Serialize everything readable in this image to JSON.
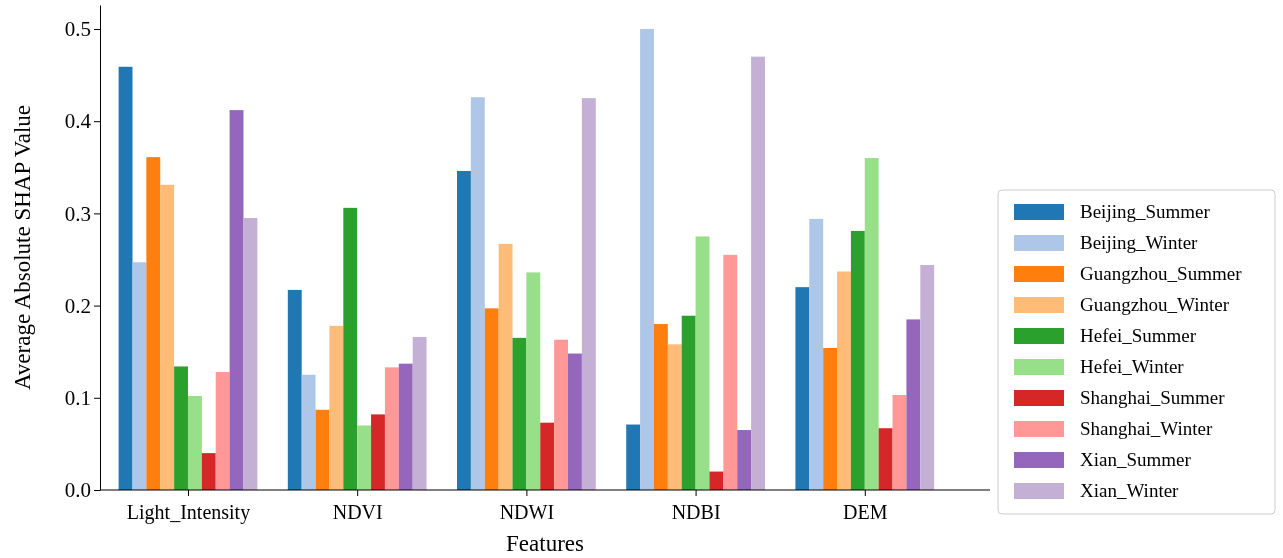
{
  "chart_data": {
    "type": "bar",
    "xlabel": "Features",
    "ylabel": "Average Absolute SHAP Value",
    "categories": [
      "Light_Intensity",
      "NDVI",
      "NDWI",
      "NDBI",
      "DEM"
    ],
    "series": [
      {
        "name": "Beijing_Summer",
        "color": "#1f77b4",
        "values": [
          0.459,
          0.217,
          0.346,
          0.071,
          0.22
        ]
      },
      {
        "name": "Beijing_Winter",
        "color": "#aec7e8",
        "values": [
          0.247,
          0.125,
          0.426,
          0.5,
          0.294
        ]
      },
      {
        "name": "Guangzhou_Summer",
        "color": "#ff7f0e",
        "values": [
          0.361,
          0.087,
          0.197,
          0.18,
          0.154
        ]
      },
      {
        "name": "Guangzhou_Winter",
        "color": "#ffbb78",
        "values": [
          0.331,
          0.178,
          0.267,
          0.158,
          0.237
        ]
      },
      {
        "name": "Hefei_Summer",
        "color": "#2ca02c",
        "values": [
          0.134,
          0.306,
          0.165,
          0.189,
          0.281
        ]
      },
      {
        "name": "Hefei_Winter",
        "color": "#98df8a",
        "values": [
          0.102,
          0.07,
          0.236,
          0.275,
          0.36
        ]
      },
      {
        "name": "Shanghai_Summer",
        "color": "#d62728",
        "values": [
          0.04,
          0.082,
          0.073,
          0.02,
          0.067
        ]
      },
      {
        "name": "Shanghai_Winter",
        "color": "#ff9896",
        "values": [
          0.128,
          0.133,
          0.163,
          0.255,
          0.103
        ]
      },
      {
        "name": "Xian_Summer",
        "color": "#9467bd",
        "values": [
          0.412,
          0.137,
          0.148,
          0.065,
          0.185
        ]
      },
      {
        "name": "Xian_Winter",
        "color": "#c5b0d5",
        "values": [
          0.295,
          0.166,
          0.425,
          0.47,
          0.244
        ]
      }
    ],
    "ylim": [
      0,
      0.526
    ],
    "yticks": [
      {
        "value": 0,
        "label": "0.0"
      },
      0.1,
      0.2,
      0.3,
      0.4,
      0.5
    ],
    "grid": false,
    "legend": "right"
  }
}
